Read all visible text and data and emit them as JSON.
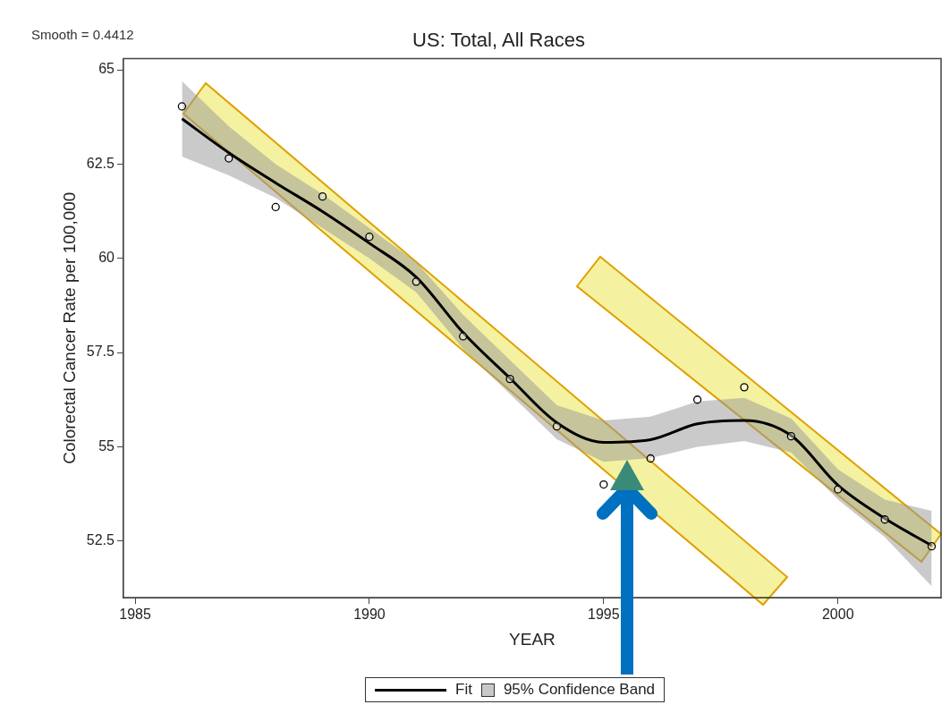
{
  "chart_data": {
    "type": "line",
    "title": "US: Total, All Races",
    "xlabel": "YEAR",
    "ylabel": "Colorectal Cancer Rate per 100,000",
    "annotations": [
      "Smooth = 0.4412",
      "95% Confidence Band"
    ],
    "xlim": [
      1984.75,
      2002.2
    ],
    "xticks": [
      1985,
      1990,
      1995,
      2000
    ],
    "ylim": [
      51,
      65.3
    ],
    "yticks": [
      52.5,
      55,
      57.5,
      60,
      62.5,
      65
    ],
    "grid": false,
    "legend": "bottom",
    "series": [
      {
        "name": "Fit",
        "color": "#000000",
        "line_style": "solid",
        "marker": "none",
        "x": [
          1986,
          1987,
          1988,
          1989,
          1990,
          1991,
          1992,
          1993,
          1994,
          1995,
          1996,
          1997,
          1998,
          1999,
          2000,
          2001,
          2002
        ],
        "values": [
          63.7,
          62.8,
          62.0,
          61.24,
          60.4,
          59.5,
          58.03,
          56.82,
          55.64,
          55.12,
          55.19,
          55.61,
          55.7,
          55.3,
          53.98,
          53.1,
          52.38
        ],
        "lower": [
          62.7,
          62.2,
          61.6,
          60.8,
          60.0,
          59.1,
          57.6,
          56.4,
          55.2,
          54.6,
          54.7,
          55.0,
          55.15,
          54.85,
          53.6,
          52.6,
          51.3
        ],
        "upper": [
          64.7,
          63.5,
          62.5,
          61.7,
          60.8,
          59.9,
          58.5,
          57.3,
          56.1,
          55.7,
          55.8,
          56.2,
          56.3,
          55.75,
          54.4,
          53.6,
          53.3
        ]
      },
      {
        "type": "scatter",
        "color": "#000000",
        "marker": "circle",
        "x": [
          1986,
          1987,
          1988,
          1989,
          1990,
          1991,
          1992,
          1993,
          1994,
          1995,
          1996,
          1997,
          1998,
          1999,
          2000,
          2001,
          2002
        ],
        "values": [
          64.03,
          62.65,
          61.36,
          61.64,
          60.57,
          59.38,
          57.93,
          56.8,
          55.54,
          54.0,
          54.69,
          56.25,
          56.58,
          55.28,
          53.87,
          53.07,
          52.36
        ]
      }
    ]
  }
}
